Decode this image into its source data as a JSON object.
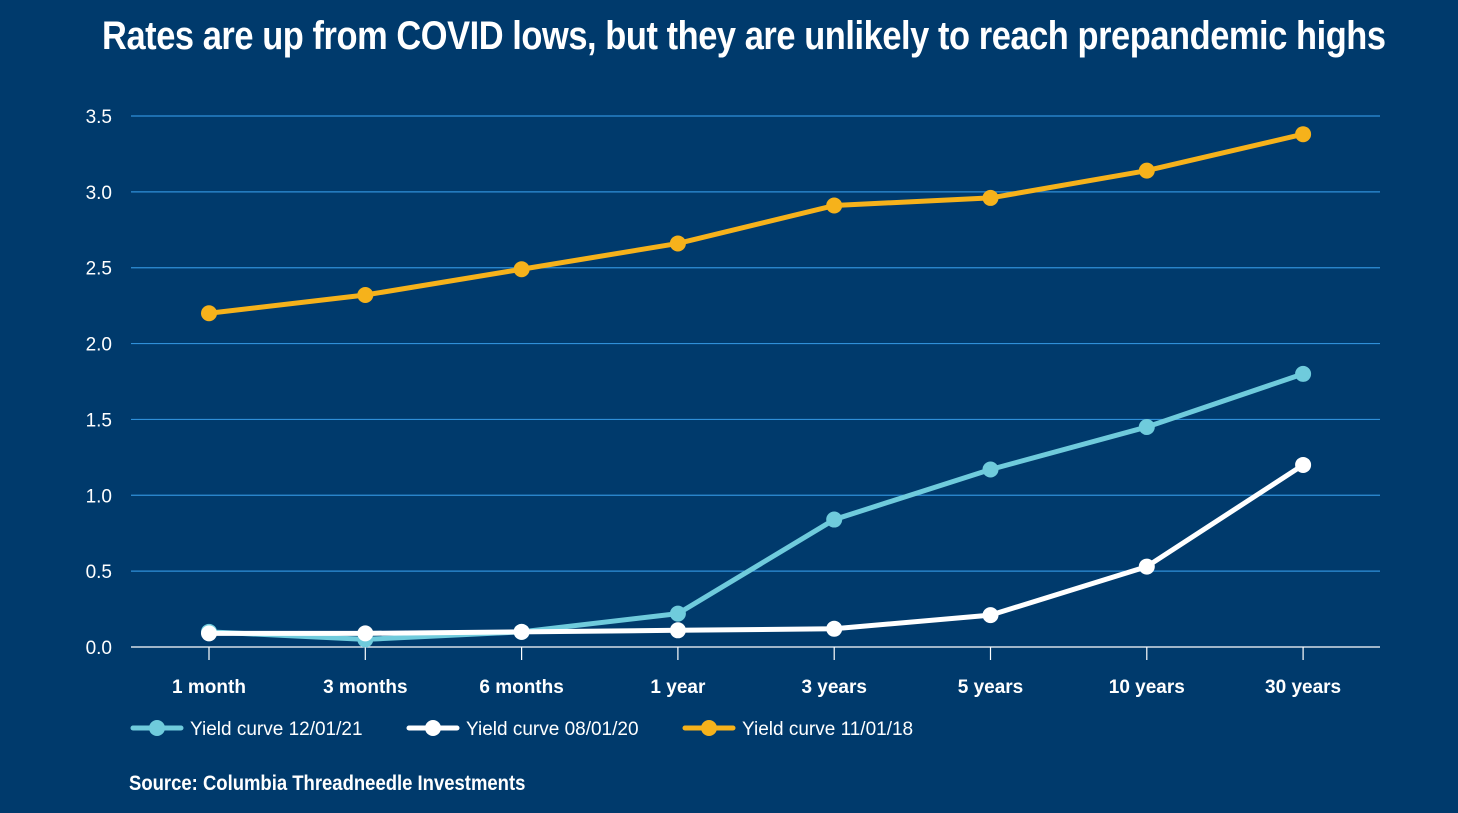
{
  "chart_data": {
    "type": "line",
    "title": "Rates are up from COVID lows, but they are unlikely to reach prepandemic highs",
    "categories": [
      "1 month",
      "3 months",
      "6 months",
      "1 year",
      "3 years",
      "5 years",
      "10 years",
      "30 years"
    ],
    "yticks": [
      "0.0",
      "0.5",
      "1.0",
      "1.5",
      "2.0",
      "2.5",
      "3.0",
      "3.5"
    ],
    "ylim": [
      0,
      3.5
    ],
    "grid": true,
    "legend_position": "bottom-left",
    "series": [
      {
        "name": "Yield curve 12/01/21",
        "color": "#6fcbdc",
        "values": [
          0.1,
          0.05,
          0.1,
          0.22,
          0.84,
          1.17,
          1.45,
          1.8
        ]
      },
      {
        "name": "Yield curve 08/01/20",
        "color": "#ffffff",
        "values": [
          0.09,
          0.09,
          0.1,
          0.11,
          0.12,
          0.21,
          0.53,
          1.2
        ]
      },
      {
        "name": "Yield curve 11/01/18",
        "color": "#f6b21b",
        "values": [
          2.2,
          2.32,
          2.49,
          2.66,
          2.91,
          2.96,
          3.14,
          3.38
        ]
      }
    ]
  },
  "source": "Source: Columbia Threadneedle Investments"
}
